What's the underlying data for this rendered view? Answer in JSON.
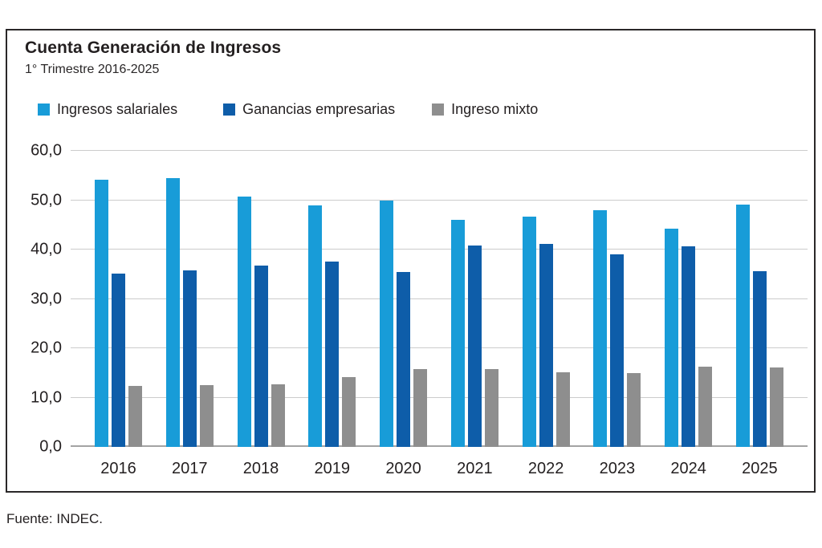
{
  "header": {
    "title": "Cuenta Generación de Ingresos",
    "subtitle": "1° Trimestre 2016-2025"
  },
  "footer": {
    "source": "Fuente: INDEC."
  },
  "colors": {
    "series_light_blue": "#189cd8",
    "series_dark_blue": "#0e5da9",
    "series_gray": "#8e8e8e",
    "gridline": "#cccccc",
    "axis_line": "#a3a3a3",
    "text": "#231f20"
  },
  "chart_data": {
    "type": "bar",
    "title": "Cuenta Generación de Ingresos",
    "subtitle": "1° Trimestre 2016-2025",
    "categories": [
      "2016",
      "2017",
      "2018",
      "2019",
      "2020",
      "2021",
      "2022",
      "2023",
      "2024",
      "2025"
    ],
    "series": [
      {
        "name": "Ingresos salariales",
        "color": "#189cd8",
        "values": [
          54.2,
          54.4,
          50.8,
          49.0,
          49.9,
          46.1,
          46.7,
          48.0,
          44.2,
          49.1
        ]
      },
      {
        "name": "Ganancias empresarias",
        "color": "#0e5da9",
        "values": [
          35.2,
          35.8,
          36.8,
          37.6,
          35.5,
          40.8,
          41.2,
          39.0,
          40.7,
          35.6
        ]
      },
      {
        "name": "Ingreso mixto",
        "color": "#8e8e8e",
        "values": [
          12.4,
          12.5,
          12.7,
          14.2,
          15.8,
          15.8,
          15.1,
          14.9,
          16.2,
          16.1
        ]
      }
    ],
    "ylim": [
      0,
      60
    ],
    "ytick_step": 10,
    "ytick_labels": [
      "0,0",
      "10,0",
      "20,0",
      "30,0",
      "40,0",
      "50,0",
      "60,0"
    ],
    "xlabel": "",
    "ylabel": "",
    "grid": true,
    "legend_position": "top",
    "source": "Fuente: INDEC."
  }
}
